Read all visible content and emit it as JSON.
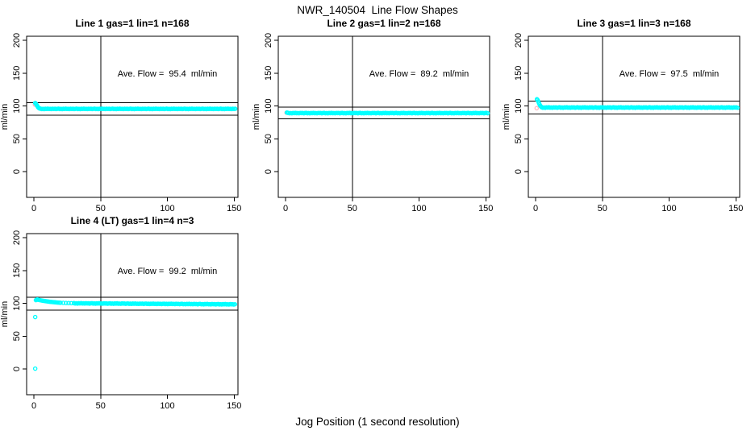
{
  "chart_data": {
    "type": "scatter",
    "title": "NWR_140504  Line Flow Shapes",
    "xlabel": "Jog Position (1 second resolution)",
    "ylabel": "ml/min",
    "xticks": [
      0,
      50,
      100,
      150
    ],
    "yticks": [
      0,
      50,
      100,
      150,
      200
    ],
    "xlim": [
      -5.3,
      153
    ],
    "ylim": [
      -39,
      206
    ],
    "grid": false,
    "point_color": "#00FFFF",
    "first_point_color": "#FFB6C1",
    "line_color": "#000000",
    "jitter_pattern": [
      0.6,
      -0.5,
      0.15,
      -0.7,
      0.4,
      -0.2,
      0.7,
      -0.35,
      0.05,
      -0.55,
      0.5,
      -0.1,
      0.3,
      -0.65,
      0.2
    ],
    "ave_text_anchor": {
      "x": 100,
      "y": 150
    },
    "panels": [
      {
        "title": "Line 1 gas=1 lin=1 n=168",
        "ave_flow": 95.4,
        "ave_flow_label": "Ave. Flow =  95.4  ml/min",
        "n": 168,
        "vline_x": 50,
        "ref_lines": [
          104.9,
          85.9
        ],
        "points_head": [
          [
            1,
            104.5
          ],
          [
            1.5,
            103.2
          ],
          [
            2,
            101.8
          ],
          [
            2.5,
            100.2
          ],
          [
            3,
            98.4
          ],
          [
            3.5,
            97.2
          ],
          [
            4,
            96.4
          ],
          [
            4.5,
            96.0
          ]
        ],
        "points_flat": {
          "from": 5,
          "to": 151.5,
          "step": 0.9,
          "base": 95.5,
          "amp": 0.5
        },
        "pink_points": [
          [
            0.8,
            102
          ]
        ]
      },
      {
        "title": "Line 2 gas=1 lin=2 n=168",
        "ave_flow": 89.2,
        "ave_flow_label": "Ave. Flow =  89.2  ml/min",
        "n": 168,
        "vline_x": 50,
        "ref_lines": [
          98.1,
          80.3
        ],
        "points_head": [
          [
            1,
            89.9
          ],
          [
            1.5,
            89.6
          ]
        ],
        "points_flat": {
          "from": 2,
          "to": 151.5,
          "step": 0.9,
          "base": 89.1,
          "amp": 0.45
        },
        "pink_points": [
          [
            0.7,
            89.6
          ]
        ]
      },
      {
        "title": "Line 3 gas=1 lin=3 n=168",
        "ave_flow": 97.5,
        "ave_flow_label": "Ave. Flow =  97.5  ml/min",
        "n": 168,
        "vline_x": 50,
        "ref_lines": [
          107.3,
          87.8
        ],
        "points_head": [
          [
            1,
            110.2
          ],
          [
            1.5,
            109.0
          ],
          [
            2,
            107.0
          ],
          [
            2.5,
            104.5
          ],
          [
            3,
            102.0
          ],
          [
            3.5,
            100.3
          ],
          [
            4,
            99.2
          ]
        ],
        "points_flat": {
          "from": 4.5,
          "to": 151.5,
          "step": 0.9,
          "base": 97.6,
          "amp": 0.65
        },
        "pink_points": [
          [
            0.8,
            96.5
          ]
        ]
      },
      {
        "title": "Line 4 (LT) gas=1 lin=4 n=3",
        "ave_flow": 99.2,
        "ave_flow_label": "Ave. Flow =  99.2  ml/min",
        "n": 3,
        "vline_x": 50,
        "ref_lines": [
          109.1,
          89.3
        ],
        "points_head": [
          [
            1,
            0.5
          ],
          [
            1,
            79
          ],
          [
            1.5,
            104.8
          ],
          [
            2,
            105.5
          ],
          [
            2.5,
            105.9
          ],
          [
            3,
            105.6
          ],
          [
            3.5,
            105.2
          ],
          [
            4,
            105.0
          ],
          [
            5,
            104.6
          ],
          [
            6,
            104.2
          ],
          [
            7,
            103.8
          ],
          [
            8,
            103.5
          ],
          [
            9,
            103.2
          ],
          [
            10,
            102.9
          ],
          [
            11,
            102.6
          ],
          [
            12,
            102.3
          ],
          [
            13,
            102.1
          ],
          [
            14,
            101.9
          ],
          [
            15,
            101.7
          ],
          [
            16,
            101.5
          ],
          [
            17,
            101.3
          ],
          [
            18,
            101.1
          ],
          [
            19,
            100.95
          ],
          [
            20,
            100.8
          ],
          [
            22,
            100.6
          ],
          [
            24,
            100.45
          ],
          [
            26,
            100.3
          ],
          [
            28,
            100.2
          ],
          [
            30,
            100.1
          ]
        ],
        "points_flat": {
          "from": 30,
          "to": 151.5,
          "step": 0.9,
          "base": 100.0,
          "end": 98.4,
          "amp": 0.5
        },
        "pink_points": []
      }
    ]
  }
}
